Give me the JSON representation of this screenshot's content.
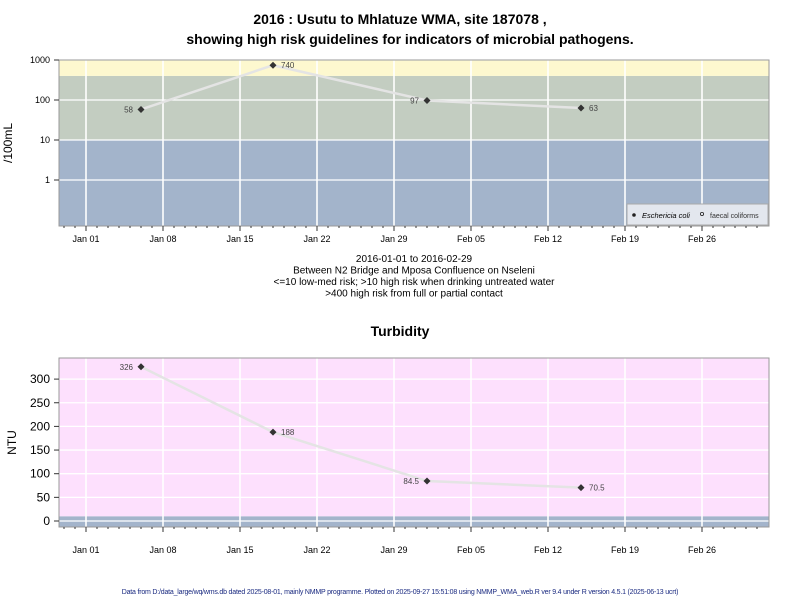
{
  "chart_data": [
    {
      "type": "line",
      "title": "2016 : Usutu to Mhlatuze WMA, site 187078 ,",
      "subtitle": "showing high risk guidelines for indicators of microbial pathogens.",
      "ylabel": "/100mL",
      "y_scale": "log",
      "ylim": [
        0.07,
        1000
      ],
      "yticks": [
        "1000",
        "100",
        "10",
        "1"
      ],
      "ytick_values": [
        1000,
        100,
        10,
        1
      ],
      "xlim": [
        "2015-12-27",
        "2016-03-02"
      ],
      "xticks": [
        "Jan 01",
        "Jan 08",
        "Jan 15",
        "Jan 22",
        "Jan 29",
        "Feb 05",
        "Feb 12",
        "Feb 19",
        "Feb 26"
      ],
      "xtick_dates": [
        "2016-01-01",
        "2016-01-08",
        "2016-01-15",
        "2016-01-22",
        "2016-01-29",
        "2016-02-05",
        "2016-02-12",
        "2016-02-19",
        "2016-02-26"
      ],
      "grid": true,
      "bands": [
        {
          "from": 0.07,
          "to": 10,
          "color": "#a3b4cb"
        },
        {
          "from": 10,
          "to": 400,
          "color": "#c3cdc1"
        },
        {
          "from": 400,
          "to": 1000,
          "color": "#fdf8cf"
        }
      ],
      "series": [
        {
          "name": "Eschericia coli",
          "marker": "filled",
          "color": "#333333",
          "x": [
            "2016-01-06",
            "2016-01-18",
            "2016-02-01",
            "2016-02-15"
          ],
          "values": [
            58,
            740,
            97,
            63
          ],
          "labels": [
            "58",
            "740",
            "97",
            "63"
          ]
        }
      ],
      "legend": {
        "placement": "bottom-right",
        "entries": [
          "Eschericia coli",
          "faecal coliforms"
        ]
      },
      "notes": [
        "2016-01-01 to 2016-02-29",
        "Between N2 Bridge and Mposa Confluence on Nseleni",
        "<=10 low-med risk; >10 high risk when drinking untreated water",
        ">400 high risk from full or partial contact"
      ]
    },
    {
      "type": "line",
      "title": "Turbidity",
      "ylabel": "NTU",
      "ylim": [
        -13,
        346
      ],
      "yticks": [
        "0",
        "50",
        "100",
        "150",
        "200",
        "250",
        "300"
      ],
      "ytick_values": [
        0,
        50,
        100,
        150,
        200,
        250,
        300
      ],
      "xlim": [
        "2015-12-27",
        "2016-03-02"
      ],
      "xticks": [
        "Jan 01",
        "Jan 08",
        "Jan 15",
        "Jan 22",
        "Jan 29",
        "Feb 05",
        "Feb 12",
        "Feb 19",
        "Feb 26"
      ],
      "xtick_dates": [
        "2016-01-01",
        "2016-01-08",
        "2016-01-15",
        "2016-01-22",
        "2016-01-29",
        "2016-02-05",
        "2016-02-12",
        "2016-02-19",
        "2016-02-26"
      ],
      "grid": true,
      "bands": [
        {
          "from": -13,
          "to": 10,
          "color": "#a3b4cb"
        },
        {
          "from": 10,
          "to": 346,
          "color": "#fde0fd"
        }
      ],
      "series": [
        {
          "marker": "filled",
          "color": "#333333",
          "x": [
            "2016-01-06",
            "2016-01-18",
            "2016-02-01",
            "2016-02-15"
          ],
          "values": [
            326,
            188,
            84.5,
            70.5
          ],
          "labels": [
            "326",
            "188",
            "84.5",
            "70.5"
          ]
        }
      ]
    }
  ],
  "footer": "Data from D:/data_large/wq/wms.db dated 2025-08-01, mainly NMMP programme. Plotted on 2025-09-27 15:51:08 using NMMP_WMA_web.R ver 9.4 under R version 4.5.1 (2025-06-13 ucrt)"
}
